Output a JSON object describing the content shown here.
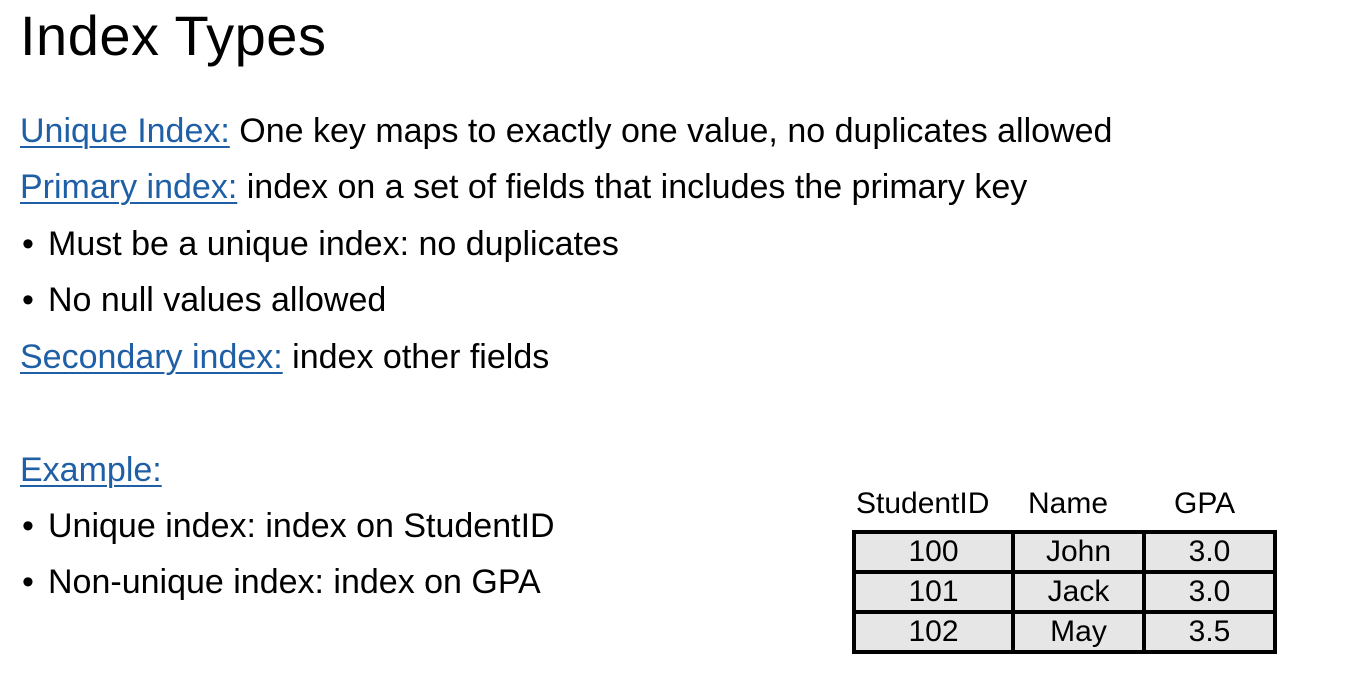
{
  "title": "Index Types",
  "definitions": [
    {
      "term": "Unique Index:",
      "text": " One key maps to exactly one value, no duplicates allowed"
    },
    {
      "term": "Primary index:",
      "text": " index on a set of fields that includes the primary key"
    }
  ],
  "primary_bullets": [
    "Must be a unique index: no duplicates",
    "No null values allowed"
  ],
  "secondary": {
    "term": "Secondary index:",
    "text": " index other fields"
  },
  "example": {
    "term": "Example:",
    "bullets": [
      "Unique index: index on StudentID",
      "Non-unique index: index on GPA"
    ]
  },
  "bullet_symbol": "•",
  "table": {
    "headers": [
      "StudentID",
      "Name",
      "GPA"
    ],
    "rows": [
      [
        "100",
        "John",
        "3.0"
      ],
      [
        "101",
        "Jack",
        "3.0"
      ],
      [
        "102",
        "May",
        "3.5"
      ]
    ]
  },
  "colors": {
    "term": "#1f5fa6",
    "cell_background": "#e6e6e6",
    "text": "#000000"
  }
}
